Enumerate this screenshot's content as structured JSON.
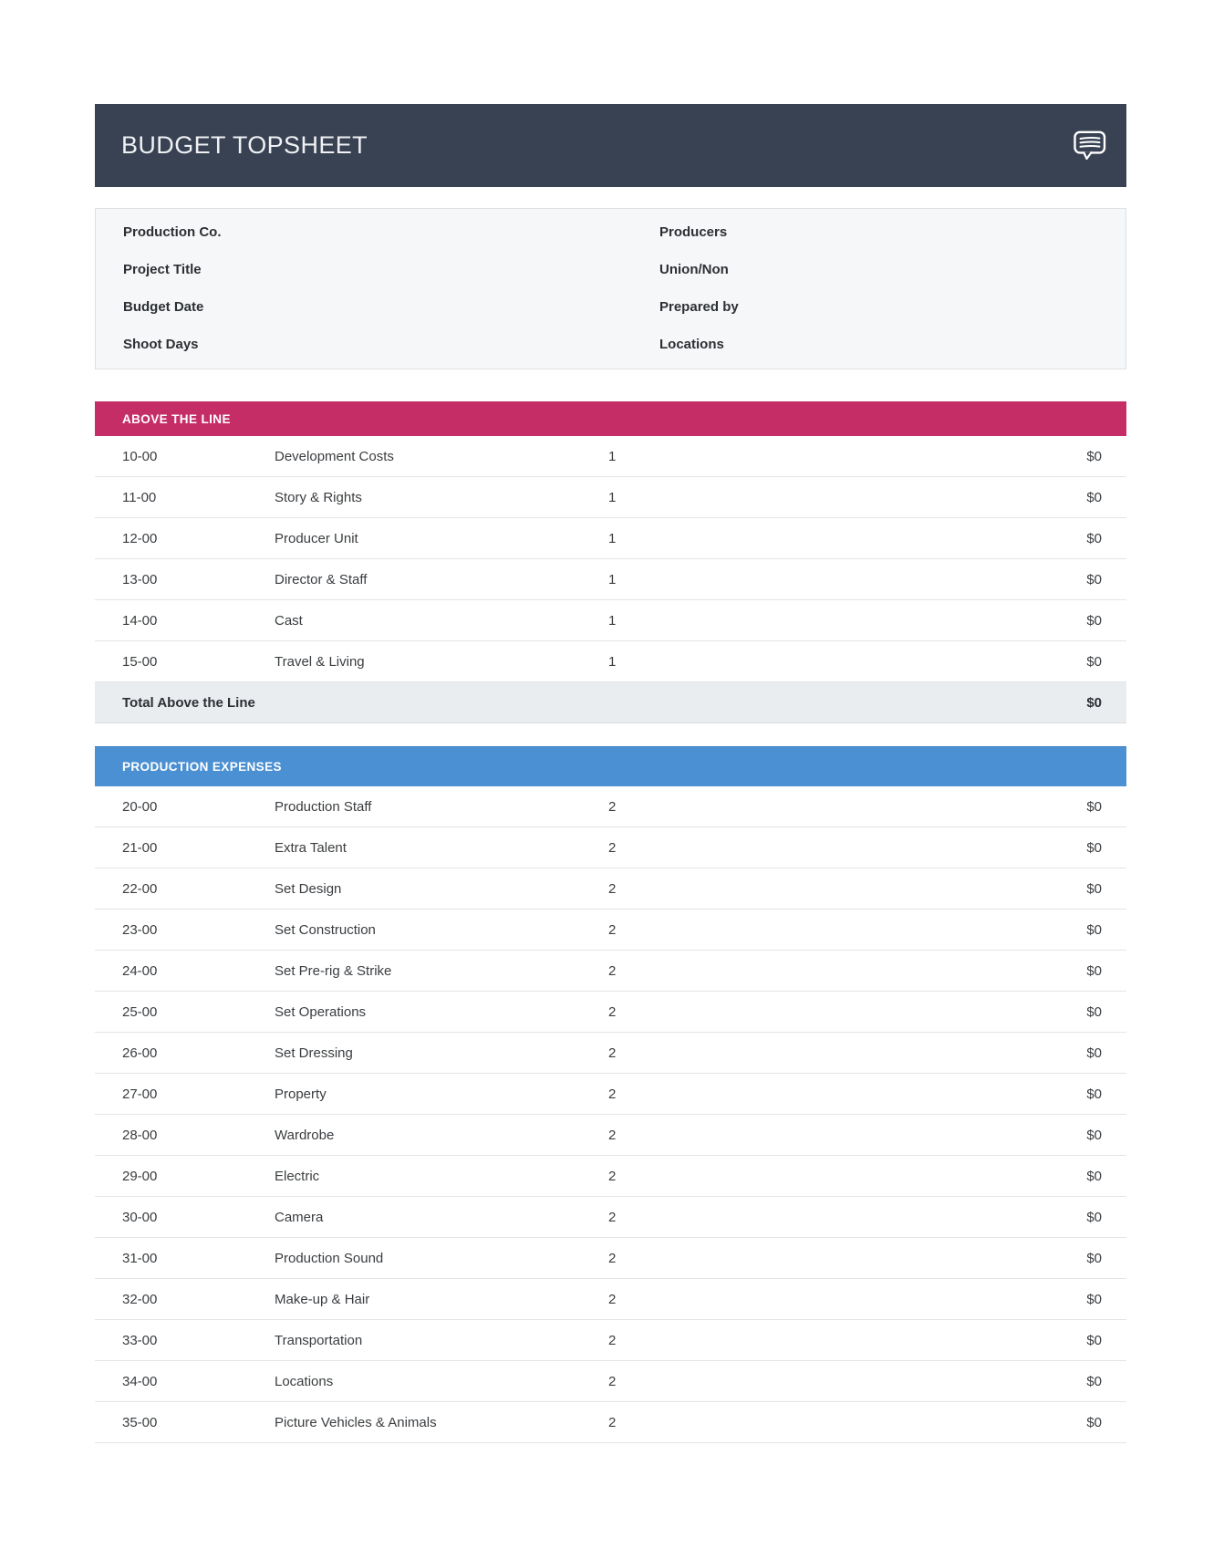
{
  "header": {
    "title": "BUDGET TOPSHEET",
    "icon": "comment-icon"
  },
  "colors": {
    "header_bg": "#384253",
    "above_the_line_accent": "#c52d67",
    "production_expenses_accent": "#4b90d2"
  },
  "info_box": {
    "fields_left": [
      "Production Co.",
      "Project Title",
      "Budget Date",
      "Shoot Days"
    ],
    "fields_right": [
      "Producers",
      "Union/Non",
      "Prepared by",
      "Locations"
    ]
  },
  "above_the_line": {
    "section_title": "ABOVE THE LINE",
    "rows": [
      {
        "code": "10-00",
        "label": "Development Costs",
        "page": "1",
        "amount": "$0"
      },
      {
        "code": "11-00",
        "label": "Story & Rights",
        "page": "1",
        "amount": "$0"
      },
      {
        "code": "12-00",
        "label": "Producer Unit",
        "page": "1",
        "amount": "$0"
      },
      {
        "code": "13-00",
        "label": "Director & Staff",
        "page": "1",
        "amount": "$0"
      },
      {
        "code": "14-00",
        "label": "Cast",
        "page": "1",
        "amount": "$0"
      },
      {
        "code": "15-00",
        "label": "Travel & Living",
        "page": "1",
        "amount": "$0"
      }
    ],
    "total_label": "Total Above the Line",
    "total_amount": "$0"
  },
  "production_expenses": {
    "section_title": "PRODUCTION EXPENSES",
    "rows": [
      {
        "code": "20-00",
        "label": "Production Staff",
        "page": "2",
        "amount": "$0"
      },
      {
        "code": "21-00",
        "label": "Extra Talent",
        "page": "2",
        "amount": "$0"
      },
      {
        "code": "22-00",
        "label": "Set Design",
        "page": "2",
        "amount": "$0"
      },
      {
        "code": "23-00",
        "label": "Set Construction",
        "page": "2",
        "amount": "$0"
      },
      {
        "code": "24-00",
        "label": "Set Pre-rig & Strike",
        "page": "2",
        "amount": "$0"
      },
      {
        "code": "25-00",
        "label": "Set Operations",
        "page": "2",
        "amount": "$0"
      },
      {
        "code": "26-00",
        "label": "Set Dressing",
        "page": "2",
        "amount": "$0"
      },
      {
        "code": "27-00",
        "label": "Property",
        "page": "2",
        "amount": "$0"
      },
      {
        "code": "28-00",
        "label": "Wardrobe",
        "page": "2",
        "amount": "$0"
      },
      {
        "code": "29-00",
        "label": "Electric",
        "page": "2",
        "amount": "$0"
      },
      {
        "code": "30-00",
        "label": "Camera",
        "page": "2",
        "amount": "$0"
      },
      {
        "code": "31-00",
        "label": "Production Sound",
        "page": "2",
        "amount": "$0"
      },
      {
        "code": "32-00",
        "label": "Make-up & Hair",
        "page": "2",
        "amount": "$0"
      },
      {
        "code": "33-00",
        "label": "Transportation",
        "page": "2",
        "amount": "$0"
      },
      {
        "code": "34-00",
        "label": "Locations",
        "page": "2",
        "amount": "$0"
      },
      {
        "code": "35-00",
        "label": "Picture Vehicles & Animals",
        "page": "2",
        "amount": "$0"
      }
    ]
  }
}
